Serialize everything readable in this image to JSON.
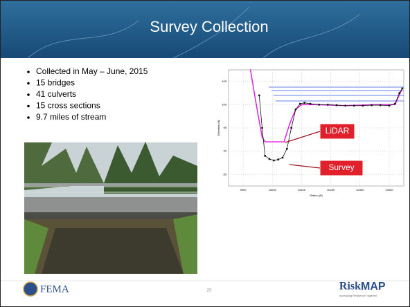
{
  "title": "Survey Collection",
  "bullets": [
    "Collected in May – June, 2015",
    "15 bridges",
    "41 culverts",
    "15 cross sections",
    "9.7 miles of stream"
  ],
  "footer": {
    "agency": "FEMA",
    "page": "25",
    "brand_risk": "Risk",
    "brand_map": "MAP",
    "tagline": "Increasing Resilience Together"
  },
  "chart_data": {
    "type": "line",
    "xlabel": "Station (ft)",
    "ylabel": "Elevation (ft)",
    "xlim": [
      9850,
      10450
    ],
    "xticks": [
      9900,
      10000,
      10100,
      10200,
      10300,
      10400
    ],
    "ylim": [
      82.5,
      107.5
    ],
    "yticks": [
      85,
      90,
      95,
      100,
      105
    ],
    "grid": true,
    "series": [
      {
        "name": "LiDAR",
        "color": "#e020e0",
        "x": [
          9925,
          9945,
          9965,
          9975,
          10040,
          10060,
          10080,
          10100,
          10150,
          10250,
          10350,
          10420,
          10445
        ],
        "values": [
          107.5,
          100,
          93,
          92,
          92,
          96,
          99,
          100,
          100,
          99.8,
          100,
          100,
          103.5
        ]
      },
      {
        "name": "Survey",
        "color": "#111111",
        "x": [
          9955,
          9965,
          9975,
          9990,
          10005,
          10020,
          10035,
          10050,
          10065,
          10080,
          10095,
          10110,
          10130,
          10160,
          10190,
          10220,
          10250,
          10280,
          10310,
          10340,
          10370,
          10400,
          10420,
          10435,
          10445
        ],
        "values": [
          102,
          95,
          89,
          88.3,
          88,
          88.2,
          88.6,
          90.5,
          95,
          99,
          100.2,
          100.4,
          100.2,
          100,
          100,
          99.9,
          99.8,
          99.8,
          99.8,
          99.9,
          99.9,
          99.8,
          100.2,
          102.5,
          103.5
        ]
      }
    ]
  }
}
